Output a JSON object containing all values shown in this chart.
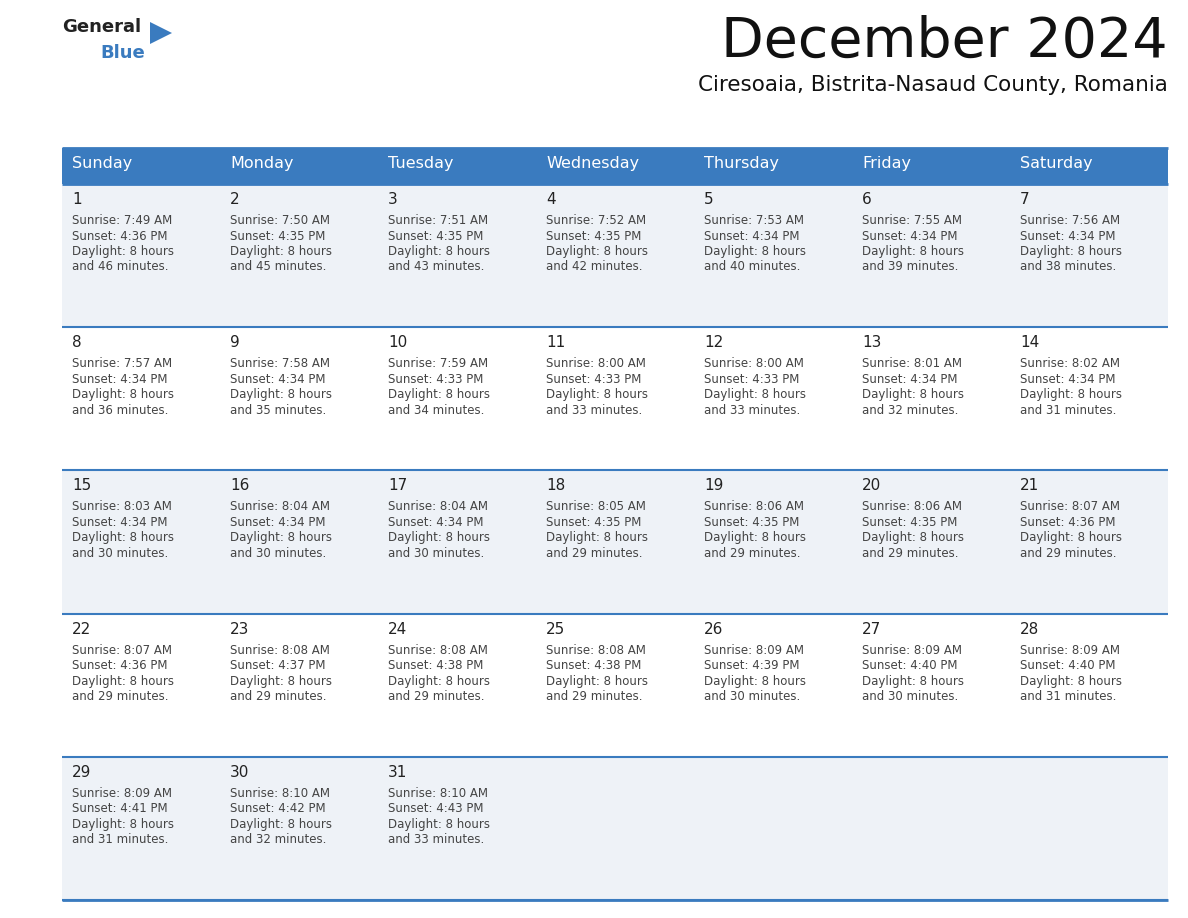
{
  "title": "December 2024",
  "subtitle": "Ciresoaia, Bistrita-Nasaud County, Romania",
  "days_of_week": [
    "Sunday",
    "Monday",
    "Tuesday",
    "Wednesday",
    "Thursday",
    "Friday",
    "Saturday"
  ],
  "header_bg": "#3a7bbf",
  "header_text": "#ffffff",
  "row_bg_odd": "#eef2f7",
  "row_bg_even": "#ffffff",
  "cell_border": "#3a7bbf",
  "day_num_color": "#222222",
  "cell_text_color": "#444444",
  "title_color": "#111111",
  "subtitle_color": "#111111",
  "logo_general_color": "#222222",
  "logo_blue_color": "#3a7bbf",
  "weeks": [
    [
      {
        "day": 1,
        "sunrise": "7:49 AM",
        "sunset": "4:36 PM",
        "daylight": "8 hours and 46 minutes."
      },
      {
        "day": 2,
        "sunrise": "7:50 AM",
        "sunset": "4:35 PM",
        "daylight": "8 hours and 45 minutes."
      },
      {
        "day": 3,
        "sunrise": "7:51 AM",
        "sunset": "4:35 PM",
        "daylight": "8 hours and 43 minutes."
      },
      {
        "day": 4,
        "sunrise": "7:52 AM",
        "sunset": "4:35 PM",
        "daylight": "8 hours and 42 minutes."
      },
      {
        "day": 5,
        "sunrise": "7:53 AM",
        "sunset": "4:34 PM",
        "daylight": "8 hours and 40 minutes."
      },
      {
        "day": 6,
        "sunrise": "7:55 AM",
        "sunset": "4:34 PM",
        "daylight": "8 hours and 39 minutes."
      },
      {
        "day": 7,
        "sunrise": "7:56 AM",
        "sunset": "4:34 PM",
        "daylight": "8 hours and 38 minutes."
      }
    ],
    [
      {
        "day": 8,
        "sunrise": "7:57 AM",
        "sunset": "4:34 PM",
        "daylight": "8 hours and 36 minutes."
      },
      {
        "day": 9,
        "sunrise": "7:58 AM",
        "sunset": "4:34 PM",
        "daylight": "8 hours and 35 minutes."
      },
      {
        "day": 10,
        "sunrise": "7:59 AM",
        "sunset": "4:33 PM",
        "daylight": "8 hours and 34 minutes."
      },
      {
        "day": 11,
        "sunrise": "8:00 AM",
        "sunset": "4:33 PM",
        "daylight": "8 hours and 33 minutes."
      },
      {
        "day": 12,
        "sunrise": "8:00 AM",
        "sunset": "4:33 PM",
        "daylight": "8 hours and 33 minutes."
      },
      {
        "day": 13,
        "sunrise": "8:01 AM",
        "sunset": "4:34 PM",
        "daylight": "8 hours and 32 minutes."
      },
      {
        "day": 14,
        "sunrise": "8:02 AM",
        "sunset": "4:34 PM",
        "daylight": "8 hours and 31 minutes."
      }
    ],
    [
      {
        "day": 15,
        "sunrise": "8:03 AM",
        "sunset": "4:34 PM",
        "daylight": "8 hours and 30 minutes."
      },
      {
        "day": 16,
        "sunrise": "8:04 AM",
        "sunset": "4:34 PM",
        "daylight": "8 hours and 30 minutes."
      },
      {
        "day": 17,
        "sunrise": "8:04 AM",
        "sunset": "4:34 PM",
        "daylight": "8 hours and 30 minutes."
      },
      {
        "day": 18,
        "sunrise": "8:05 AM",
        "sunset": "4:35 PM",
        "daylight": "8 hours and 29 minutes."
      },
      {
        "day": 19,
        "sunrise": "8:06 AM",
        "sunset": "4:35 PM",
        "daylight": "8 hours and 29 minutes."
      },
      {
        "day": 20,
        "sunrise": "8:06 AM",
        "sunset": "4:35 PM",
        "daylight": "8 hours and 29 minutes."
      },
      {
        "day": 21,
        "sunrise": "8:07 AM",
        "sunset": "4:36 PM",
        "daylight": "8 hours and 29 minutes."
      }
    ],
    [
      {
        "day": 22,
        "sunrise": "8:07 AM",
        "sunset": "4:36 PM",
        "daylight": "8 hours and 29 minutes."
      },
      {
        "day": 23,
        "sunrise": "8:08 AM",
        "sunset": "4:37 PM",
        "daylight": "8 hours and 29 minutes."
      },
      {
        "day": 24,
        "sunrise": "8:08 AM",
        "sunset": "4:38 PM",
        "daylight": "8 hours and 29 minutes."
      },
      {
        "day": 25,
        "sunrise": "8:08 AM",
        "sunset": "4:38 PM",
        "daylight": "8 hours and 29 minutes."
      },
      {
        "day": 26,
        "sunrise": "8:09 AM",
        "sunset": "4:39 PM",
        "daylight": "8 hours and 30 minutes."
      },
      {
        "day": 27,
        "sunrise": "8:09 AM",
        "sunset": "4:40 PM",
        "daylight": "8 hours and 30 minutes."
      },
      {
        "day": 28,
        "sunrise": "8:09 AM",
        "sunset": "4:40 PM",
        "daylight": "8 hours and 31 minutes."
      }
    ],
    [
      {
        "day": 29,
        "sunrise": "8:09 AM",
        "sunset": "4:41 PM",
        "daylight": "8 hours and 31 minutes."
      },
      {
        "day": 30,
        "sunrise": "8:10 AM",
        "sunset": "4:42 PM",
        "daylight": "8 hours and 32 minutes."
      },
      {
        "day": 31,
        "sunrise": "8:10 AM",
        "sunset": "4:43 PM",
        "daylight": "8 hours and 33 minutes."
      },
      null,
      null,
      null,
      null
    ]
  ]
}
